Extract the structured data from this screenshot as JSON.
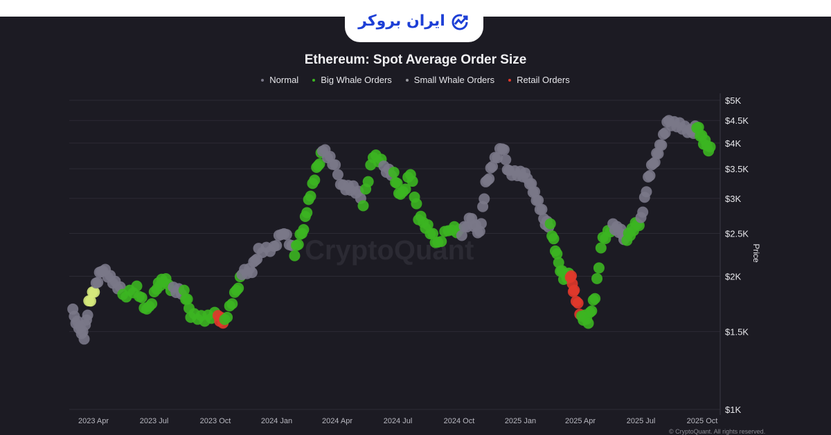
{
  "brand": {
    "logo_text": "ایران بروکر"
  },
  "watermark": "CryptoQuant",
  "copyright": "© CryptoQuant. All rights reserved.",
  "chart_data": {
    "type": "scatter",
    "title": "Ethereum: Spot Average Order Size",
    "ylabel": "Price",
    "yscale": "log",
    "ylim": [
      1000,
      5000
    ],
    "yticks": [
      {
        "v": 1000,
        "label": "$1K"
      },
      {
        "v": 1500,
        "label": "$1.5K"
      },
      {
        "v": 2000,
        "label": "$2K"
      },
      {
        "v": 2500,
        "label": "$2.5K"
      },
      {
        "v": 3000,
        "label": "$3K"
      },
      {
        "v": 3500,
        "label": "$3.5K"
      },
      {
        "v": 4000,
        "label": "$4K"
      },
      {
        "v": 4500,
        "label": "$4.5K"
      },
      {
        "v": 5000,
        "label": "$5K"
      }
    ],
    "xticks": [
      {
        "d": "2023-04-01",
        "label": "2023 Apr"
      },
      {
        "d": "2023-07-01",
        "label": "2023 Jul"
      },
      {
        "d": "2023-10-01",
        "label": "2023 Oct"
      },
      {
        "d": "2024-01-01",
        "label": "2024 Jan"
      },
      {
        "d": "2024-04-01",
        "label": "2024 Apr"
      },
      {
        "d": "2024-07-01",
        "label": "2024 Jul"
      },
      {
        "d": "2024-10-01",
        "label": "2024 Oct"
      },
      {
        "d": "2025-01-01",
        "label": "2025 Jan"
      },
      {
        "d": "2025-04-01",
        "label": "2025 Apr"
      },
      {
        "d": "2025-07-01",
        "label": "2025 Jul"
      },
      {
        "d": "2025-10-01",
        "label": "2025 Oct"
      }
    ],
    "grid": true,
    "legend_position": "top",
    "series": [
      {
        "key": "normal",
        "name": "Normal",
        "color": "#7a7888"
      },
      {
        "key": "big",
        "name": "Big Whale Orders",
        "color": "#3cb521"
      },
      {
        "key": "small",
        "name": "Small Whale Orders",
        "color": "#d6ea7c"
      },
      {
        "key": "retail",
        "name": "Retail Orders",
        "color": "#e0392b"
      }
    ],
    "points": [
      [
        "2023-03-01",
        1650,
        "normal"
      ],
      [
        "2023-03-10",
        1550,
        "normal"
      ],
      [
        "2023-03-18",
        1450,
        "normal"
      ],
      [
        "2023-03-25",
        1750,
        "small"
      ],
      [
        "2023-04-05",
        1900,
        "normal"
      ],
      [
        "2023-04-15",
        2100,
        "normal"
      ],
      [
        "2023-04-30",
        1950,
        "normal"
      ],
      [
        "2023-05-15",
        1820,
        "big"
      ],
      [
        "2023-06-05",
        1880,
        "big"
      ],
      [
        "2023-06-20",
        1650,
        "big"
      ],
      [
        "2023-07-05",
        1900,
        "big"
      ],
      [
        "2023-07-15",
        1950,
        "big"
      ],
      [
        "2023-07-30",
        1880,
        "normal"
      ],
      [
        "2023-08-15",
        1830,
        "big"
      ],
      [
        "2023-08-25",
        1650,
        "big"
      ],
      [
        "2023-09-15",
        1600,
        "big"
      ],
      [
        "2023-10-05",
        1630,
        "retail"
      ],
      [
        "2023-10-15",
        1580,
        "big"
      ],
      [
        "2023-10-30",
        1800,
        "big"
      ],
      [
        "2023-11-10",
        2050,
        "normal"
      ],
      [
        "2023-11-25",
        2050,
        "normal"
      ],
      [
        "2023-12-05",
        2300,
        "normal"
      ],
      [
        "2023-12-28",
        2300,
        "normal"
      ],
      [
        "2024-01-12",
        2550,
        "normal"
      ],
      [
        "2024-01-28",
        2250,
        "big"
      ],
      [
        "2024-02-08",
        2500,
        "big"
      ],
      [
        "2024-02-18",
        2950,
        "big"
      ],
      [
        "2024-03-01",
        3450,
        "big"
      ],
      [
        "2024-03-10",
        3900,
        "normal"
      ],
      [
        "2024-03-25",
        3600,
        "normal"
      ],
      [
        "2024-04-10",
        3200,
        "normal"
      ],
      [
        "2024-04-25",
        3150,
        "normal"
      ],
      [
        "2024-05-10",
        2950,
        "big"
      ],
      [
        "2024-05-25",
        3750,
        "big"
      ],
      [
        "2024-06-10",
        3550,
        "normal"
      ],
      [
        "2024-06-25",
        3400,
        "big"
      ],
      [
        "2024-07-05",
        3000,
        "big"
      ],
      [
        "2024-07-20",
        3450,
        "big"
      ],
      [
        "2024-08-01",
        2700,
        "big"
      ],
      [
        "2024-08-15",
        2600,
        "big"
      ],
      [
        "2024-08-30",
        2350,
        "big"
      ],
      [
        "2024-09-20",
        2600,
        "big"
      ],
      [
        "2024-10-05",
        2500,
        "normal"
      ],
      [
        "2024-10-20",
        2700,
        "normal"
      ],
      [
        "2024-11-01",
        2500,
        "normal"
      ],
      [
        "2024-11-10",
        3200,
        "normal"
      ],
      [
        "2024-11-20",
        3600,
        "normal"
      ],
      [
        "2024-12-05",
        3900,
        "normal"
      ],
      [
        "2024-12-15",
        3450,
        "normal"
      ],
      [
        "2025-01-01",
        3400,
        "normal"
      ],
      [
        "2025-01-15",
        3300,
        "normal"
      ],
      [
        "2025-01-25",
        3000,
        "normal"
      ],
      [
        "2025-02-05",
        2700,
        "normal"
      ],
      [
        "2025-02-15",
        2600,
        "big"
      ],
      [
        "2025-02-25",
        2200,
        "big"
      ],
      [
        "2025-03-07",
        2000,
        "big"
      ],
      [
        "2025-03-17",
        2000,
        "retail"
      ],
      [
        "2025-03-23",
        1850,
        "retail"
      ],
      [
        "2025-04-03",
        1600,
        "big"
      ],
      [
        "2025-04-13",
        1600,
        "big"
      ],
      [
        "2025-04-23",
        1800,
        "big"
      ],
      [
        "2025-05-05",
        2450,
        "big"
      ],
      [
        "2025-05-20",
        2600,
        "normal"
      ],
      [
        "2025-06-01",
        2500,
        "normal"
      ],
      [
        "2025-06-10",
        2450,
        "big"
      ],
      [
        "2025-06-20",
        2550,
        "big"
      ],
      [
        "2025-07-01",
        2700,
        "normal"
      ],
      [
        "2025-07-12",
        3300,
        "normal"
      ],
      [
        "2025-07-22",
        3700,
        "normal"
      ],
      [
        "2025-08-01",
        4000,
        "normal"
      ],
      [
        "2025-08-12",
        4500,
        "normal"
      ],
      [
        "2025-08-28",
        4400,
        "normal"
      ],
      [
        "2025-09-13",
        4200,
        "normal"
      ],
      [
        "2025-09-23",
        4400,
        "big"
      ],
      [
        "2025-10-03",
        4000,
        "big"
      ],
      [
        "2025-10-13",
        3900,
        "big"
      ]
    ]
  }
}
